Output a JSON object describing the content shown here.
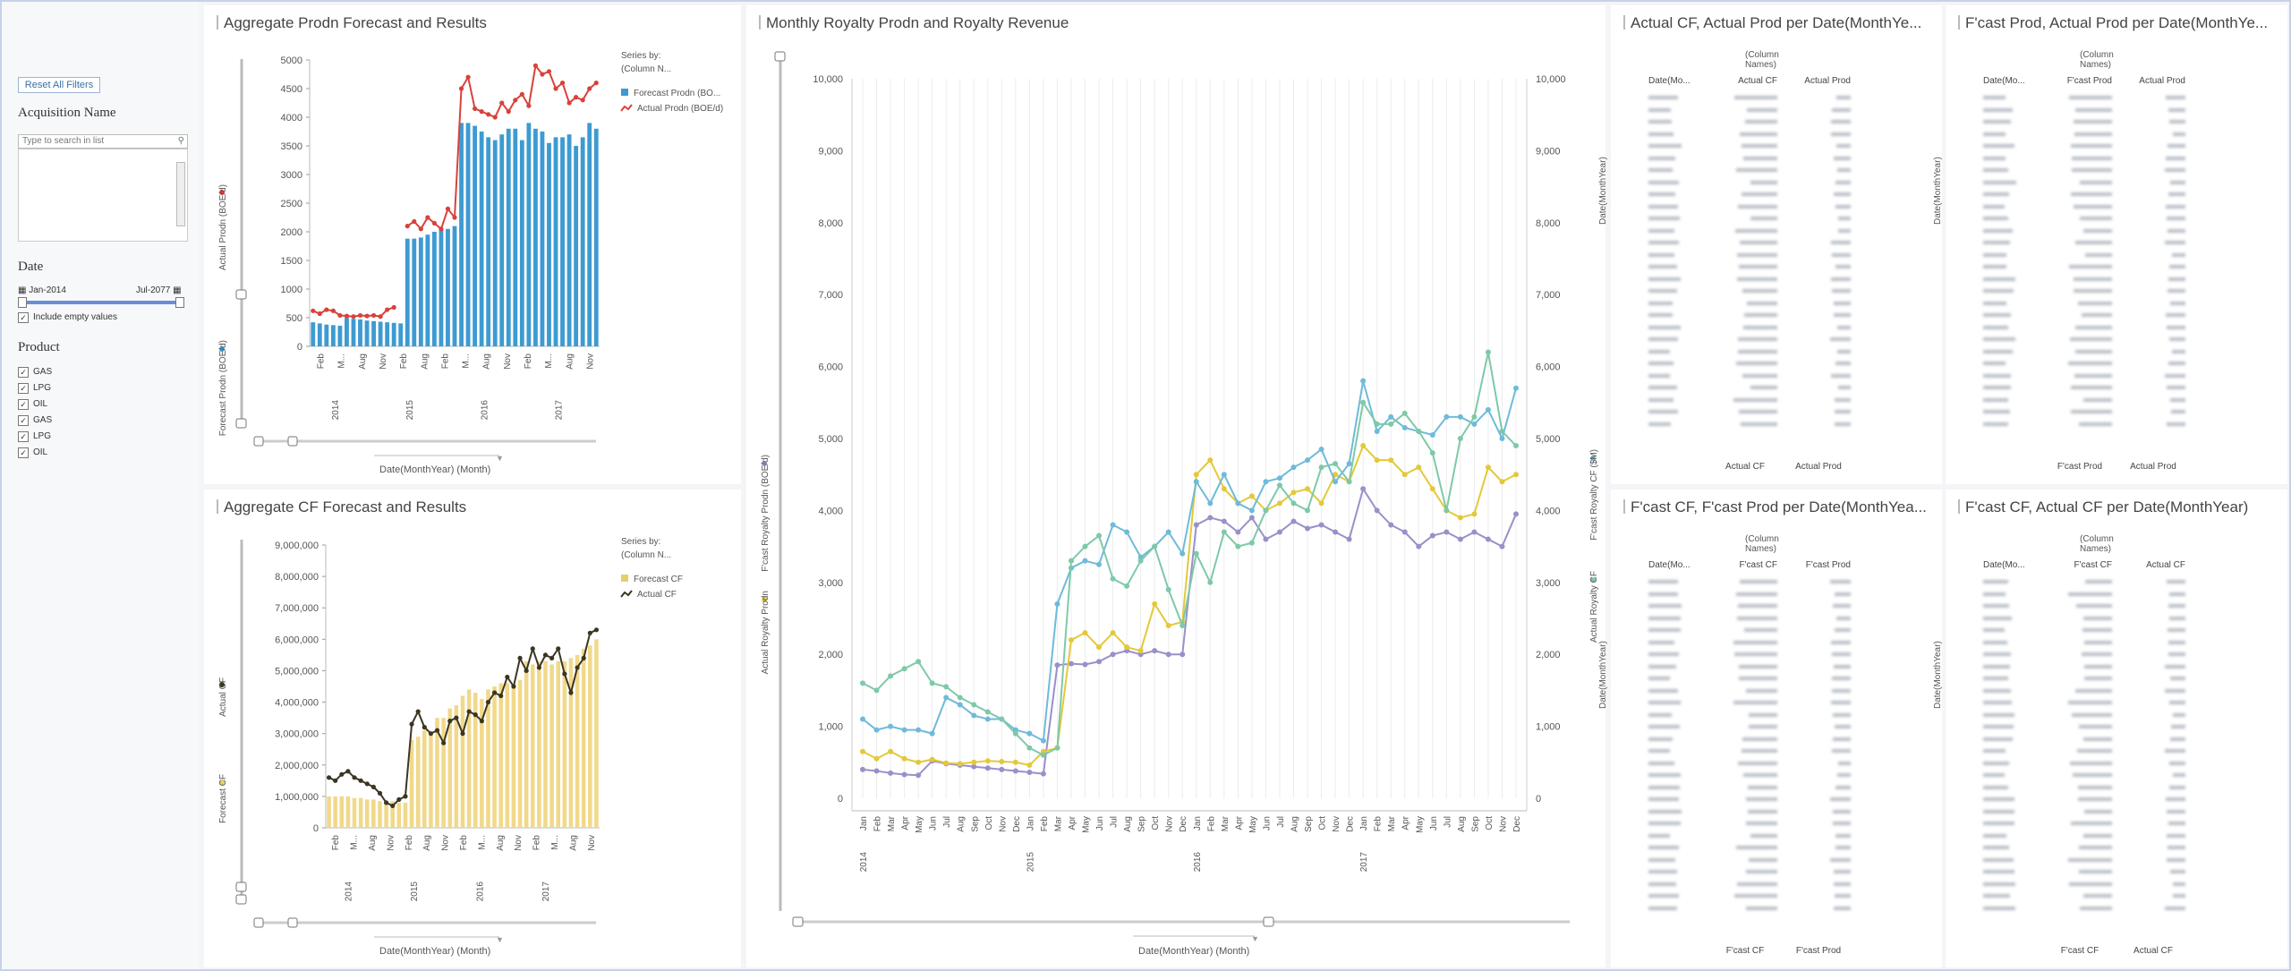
{
  "filters": {
    "reset_label": "Reset All Filters",
    "acquisition_heading": "Acquisition Name",
    "search_placeholder": "Type to search in list",
    "date_heading": "Date",
    "date_from": "Jan-2014",
    "date_to": "Jul-2077",
    "include_empty": "Include empty values",
    "product_heading": "Product",
    "products": [
      "GAS",
      "LPG",
      "OIL",
      "GAS",
      "LPG",
      "OIL"
    ]
  },
  "panels": {
    "prodn_title": "Aggregate Prodn Forecast and Results",
    "cf_title": "Aggregate CF Forecast and Results",
    "royalty_title": "Monthly Royalty Prodn and Royalty Revenue",
    "t1_title": "Actual CF, Actual Prod per Date(MonthYe...",
    "t2_title": "F'cast Prod, Actual Prod per Date(MonthYe...",
    "t3_title": "F'cast CF, F'cast Prod per Date(MonthYea...",
    "t4_title": "F'cast CF, Actual CF per Date(MonthYear)"
  },
  "legend": {
    "series_by": "Series by:",
    "column_names": "(Column N...",
    "prodn_items": [
      "Forecast Prodn (BO...",
      "Actual Prodn (BOE/d)"
    ],
    "cf_items": [
      "Forecast CF",
      "Actual CF"
    ]
  },
  "axes": {
    "actual_prodn": "Actual Prodn (BOE/d)",
    "forecast_prodn": "Forecast Prodn (BOE/d)",
    "actual_cf": "Actual CF",
    "forecast_cf": "Forecast CF",
    "fcast_royalty_prodn": "F'cast Royalty Prodn (BOE/d)",
    "actual_royalty_prodn": "Actual Royalty Prodn",
    "fcast_royalty_cf": "F'cast Royalty CF ($M)",
    "actual_royalty_cf": "Actual Royalty CF",
    "date_month": "Date(MonthYear) (Month)"
  },
  "tables": {
    "column_names": "(Column Names)",
    "row_header": "Date(Mo...",
    "row_axis": "Date(MonthYear)",
    "t1_cols": [
      "Actual CF",
      "Actual Prod"
    ],
    "t2_cols": [
      "F'cast Prod",
      "Actual Prod"
    ],
    "t3_cols": [
      "F'cast CF",
      "F'cast Prod"
    ],
    "t4_cols": [
      "F'cast CF",
      "Actual CF"
    ]
  },
  "chart_data": [
    {
      "type": "bar",
      "title": "Aggregate Prodn Forecast and Results",
      "ylabel": "Actual Prodn (BOE/d)",
      "ylim": [
        0,
        5000
      ],
      "year_labels": [
        "2014",
        "2015",
        "2016",
        "2017"
      ],
      "month_labels": [
        "Feb",
        "M...",
        "Aug",
        "Nov",
        "Feb",
        "Aug",
        "Feb",
        "M...",
        "Aug",
        "Nov",
        "Feb",
        "M...",
        "Aug",
        "Nov"
      ],
      "series": [
        {
          "name": "Forecast Prodn (BO...",
          "color": "#3d9bd1",
          "values": [
            420,
            400,
            380,
            370,
            360,
            500,
            480,
            470,
            450,
            440,
            430,
            420,
            410,
            400,
            1880,
            1880,
            1900,
            1950,
            2000,
            2050,
            2050,
            2100,
            3900,
            3900,
            3850,
            3750,
            3650,
            3600,
            3700,
            3800,
            3800,
            3600,
            3900,
            3800,
            3750,
            3550,
            3650,
            3650,
            3700,
            3500,
            3650,
            3900,
            3800
          ]
        },
        {
          "name": "Actual Prodn (BOE/d)",
          "color": "#d9413a",
          "values": [
            620,
            570,
            640,
            620,
            540,
            530,
            520,
            540,
            530,
            540,
            520,
            640,
            680,
            null,
            2100,
            2180,
            2050,
            2250,
            2150,
            2050,
            2400,
            2250,
            4500,
            4700,
            4150,
            4100,
            4050,
            4000,
            4250,
            4100,
            4300,
            4400,
            4200,
            4900,
            4750,
            4800,
            4500,
            4600,
            4250,
            4350,
            4300,
            4500,
            4600
          ]
        }
      ]
    },
    {
      "type": "bar",
      "title": "Aggregate CF Forecast and Results",
      "ylabel": "Actual CF",
      "ylim": [
        0,
        9000000
      ],
      "ytick_labels": [
        "0",
        "1,000,000",
        "2,000,000",
        "3,000,000",
        "4,000,000",
        "5,000,000",
        "6,000,000",
        "7,000,000",
        "8,000,000",
        "9,000,000"
      ],
      "year_labels": [
        "2014",
        "2015",
        "2016",
        "2017"
      ],
      "month_labels": [
        "Feb",
        "M...",
        "Aug",
        "Nov",
        "Feb",
        "Aug",
        "Nov",
        "Feb",
        "M...",
        "Aug",
        "Nov",
        "Feb",
        "M...",
        "Aug",
        "Nov"
      ],
      "series": [
        {
          "name": "Forecast CF",
          "color": "#f1d98a",
          "values": [
            1000000,
            1000000,
            1000000,
            1000000,
            950000,
            950000,
            900000,
            900000,
            850000,
            850000,
            850000,
            800000,
            800000,
            2800000,
            2900000,
            3100000,
            3000000,
            3500000,
            3500000,
            3800000,
            3900000,
            4200000,
            4400000,
            4300000,
            4100000,
            4400000,
            4500000,
            4600000,
            4600000,
            4500000,
            4700000,
            5300000,
            5200000,
            5300000,
            5300000,
            5200000,
            5300000,
            5300000,
            5400000,
            5500000,
            5700000,
            5800000,
            6000000
          ]
        },
        {
          "name": "Actual CF",
          "color": "#3b3622",
          "values": [
            1600000,
            1500000,
            1700000,
            1800000,
            1600000,
            1500000,
            1400000,
            1300000,
            1100000,
            800000,
            700000,
            900000,
            1000000,
            3300000,
            3700000,
            3200000,
            3000000,
            3100000,
            2700000,
            3400000,
            3500000,
            3000000,
            3700000,
            3600000,
            3400000,
            4000000,
            4300000,
            4200000,
            4800000,
            4500000,
            5400000,
            5000000,
            5700000,
            5100000,
            5500000,
            5400000,
            5700000,
            4900000,
            4300000,
            5100000,
            5400000,
            6200000,
            6300000
          ]
        }
      ]
    },
    {
      "type": "line",
      "title": "Monthly Royalty Prodn and Royalty Revenue",
      "ylim": [
        0,
        10000
      ],
      "ytick_labels": [
        "0",
        "1,000",
        "2,000",
        "3,000",
        "4,000",
        "5,000",
        "6,000",
        "7,000",
        "8,000",
        "9,000",
        "10,000"
      ],
      "xlabel": "Date(MonthYear) (Month)",
      "year_labels": [
        "2014",
        "2015",
        "2016",
        "2017"
      ],
      "month_labels": [
        "Jan",
        "Feb",
        "Mar",
        "Apr",
        "May",
        "Jun",
        "Jul",
        "Aug",
        "Sep",
        "Oct",
        "Nov",
        "Dec",
        "Jan",
        "Feb",
        "Mar",
        "Apr",
        "May",
        "Jun",
        "Jul",
        "Aug",
        "Sep",
        "Oct",
        "Nov",
        "Dec",
        "Jan",
        "Feb",
        "Mar",
        "Apr",
        "May",
        "Jun",
        "Jul",
        "Aug",
        "Sep",
        "Oct",
        "Nov",
        "Dec",
        "Jan",
        "Feb",
        "Mar",
        "Apr",
        "May",
        "Jun",
        "Jul",
        "Aug",
        "Sep",
        "Oct",
        "Nov",
        "Dec"
      ],
      "series": [
        {
          "name": "F'cast Royalty Prodn (BOE/d)",
          "color": "#9a90c8",
          "values": [
            400,
            380,
            350,
            330,
            320,
            520,
            480,
            460,
            440,
            420,
            400,
            380,
            360,
            340,
            1850,
            1870,
            1860,
            1900,
            2000,
            2050,
            2000,
            2050,
            2000,
            2000,
            3800,
            3900,
            3850,
            3700,
            3900,
            3600,
            3700,
            3850,
            3750,
            3800,
            3700,
            3600,
            4300,
            4000,
            3800,
            3700,
            3500,
            3650,
            3700,
            3600,
            3700,
            3600,
            3500,
            3950
          ]
        },
        {
          "name": "Actual Royalty Prodn",
          "color": "#e3c93a",
          "values": [
            650,
            550,
            650,
            550,
            500,
            540,
            490,
            480,
            500,
            520,
            510,
            500,
            460,
            650,
            700,
            2200,
            2300,
            2100,
            2300,
            2100,
            2050,
            2700,
            2400,
            2450,
            4500,
            4700,
            4300,
            4100,
            4200,
            4000,
            4100,
            4250,
            4300,
            4100,
            4500,
            4400,
            4900,
            4700,
            4700,
            4500,
            4600,
            4300,
            4000,
            3900,
            3950,
            4600,
            4400,
            4500
          ]
        },
        {
          "name": "F'cast Royalty CF ($M)",
          "color": "#6fbad9",
          "values": [
            1100,
            950,
            1000,
            950,
            950,
            900,
            1400,
            1300,
            1150,
            1100,
            1100,
            950,
            900,
            800,
            2700,
            3200,
            3300,
            3250,
            3800,
            3700,
            3350,
            3500,
            3700,
            3400,
            4400,
            4100,
            4500,
            4100,
            4000,
            4400,
            4450,
            4600,
            4700,
            4850,
            4400,
            4650,
            5800,
            5100,
            5300,
            5150,
            5100,
            5050,
            5300,
            5300,
            5200,
            5400,
            5000,
            5700
          ]
        },
        {
          "name": "Actual Royalty CF",
          "color": "#7ec9a8",
          "values": [
            1600,
            1500,
            1700,
            1800,
            1900,
            1600,
            1550,
            1400,
            1300,
            1200,
            1100,
            900,
            700,
            600,
            700,
            3300,
            3500,
            3650,
            3050,
            2950,
            3300,
            3500,
            2900,
            2400,
            3400,
            3000,
            3700,
            3500,
            3550,
            4000,
            4350,
            4100,
            4000,
            4600,
            4650,
            4400,
            5500,
            5200,
            5200,
            5350,
            5100,
            4800,
            4000,
            5000,
            5300,
            6200,
            5100,
            4900
          ]
        }
      ]
    }
  ]
}
